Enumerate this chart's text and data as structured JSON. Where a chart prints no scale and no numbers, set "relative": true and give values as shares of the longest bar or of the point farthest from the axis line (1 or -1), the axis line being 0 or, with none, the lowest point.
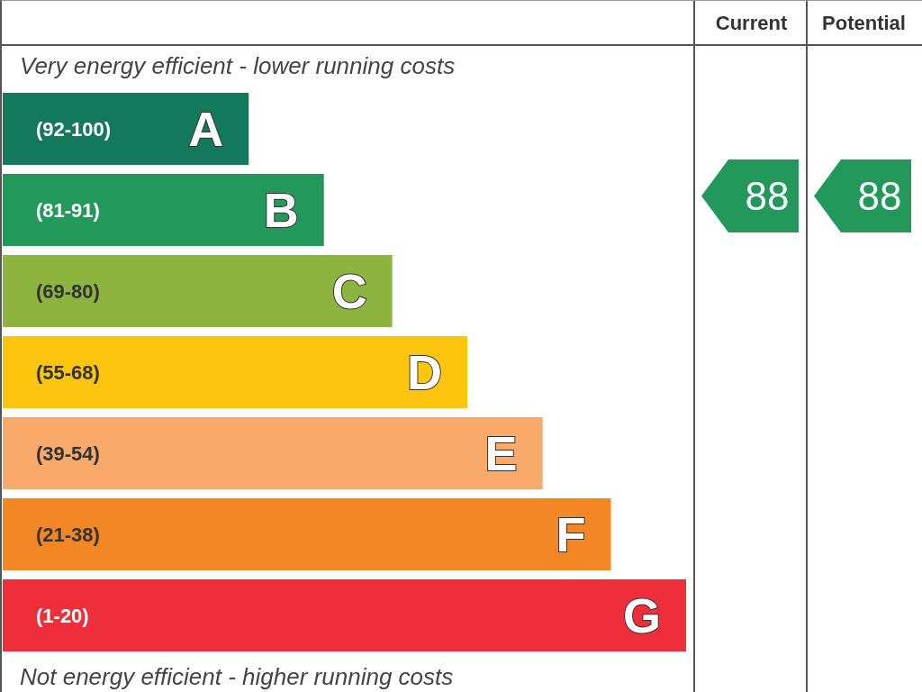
{
  "chart_data": [
    {
      "type": "bar",
      "orientation": "horizontal",
      "relative": true,
      "tick_labels": false,
      "categories": [
        "A",
        "B",
        "C",
        "D",
        "E",
        "F",
        "G"
      ],
      "values": [
        0.36,
        0.47,
        0.57,
        0.68,
        0.79,
        0.89,
        1
      ],
      "colors": [
        "#12795c",
        "#22995a",
        "#8cb43f",
        "#fec50f",
        "#f9aa6a",
        "#f38724",
        "#ef2e3b"
      ],
      "annotations": [
        "Very energy efficient - lower running costs",
        "Not energy efficient - higher running costs",
        "(92-100)",
        "(81-91)",
        "(69-80)",
        "(55-68)",
        "(39-54)",
        "(21-38)",
        "(1-20)"
      ]
    },
    {
      "type": "other",
      "categories": [
        "Current",
        "Potential"
      ],
      "values": [
        88,
        88
      ],
      "data_labels": true,
      "colors": [
        "#22995a",
        "#22995a"
      ]
    }
  ]
}
